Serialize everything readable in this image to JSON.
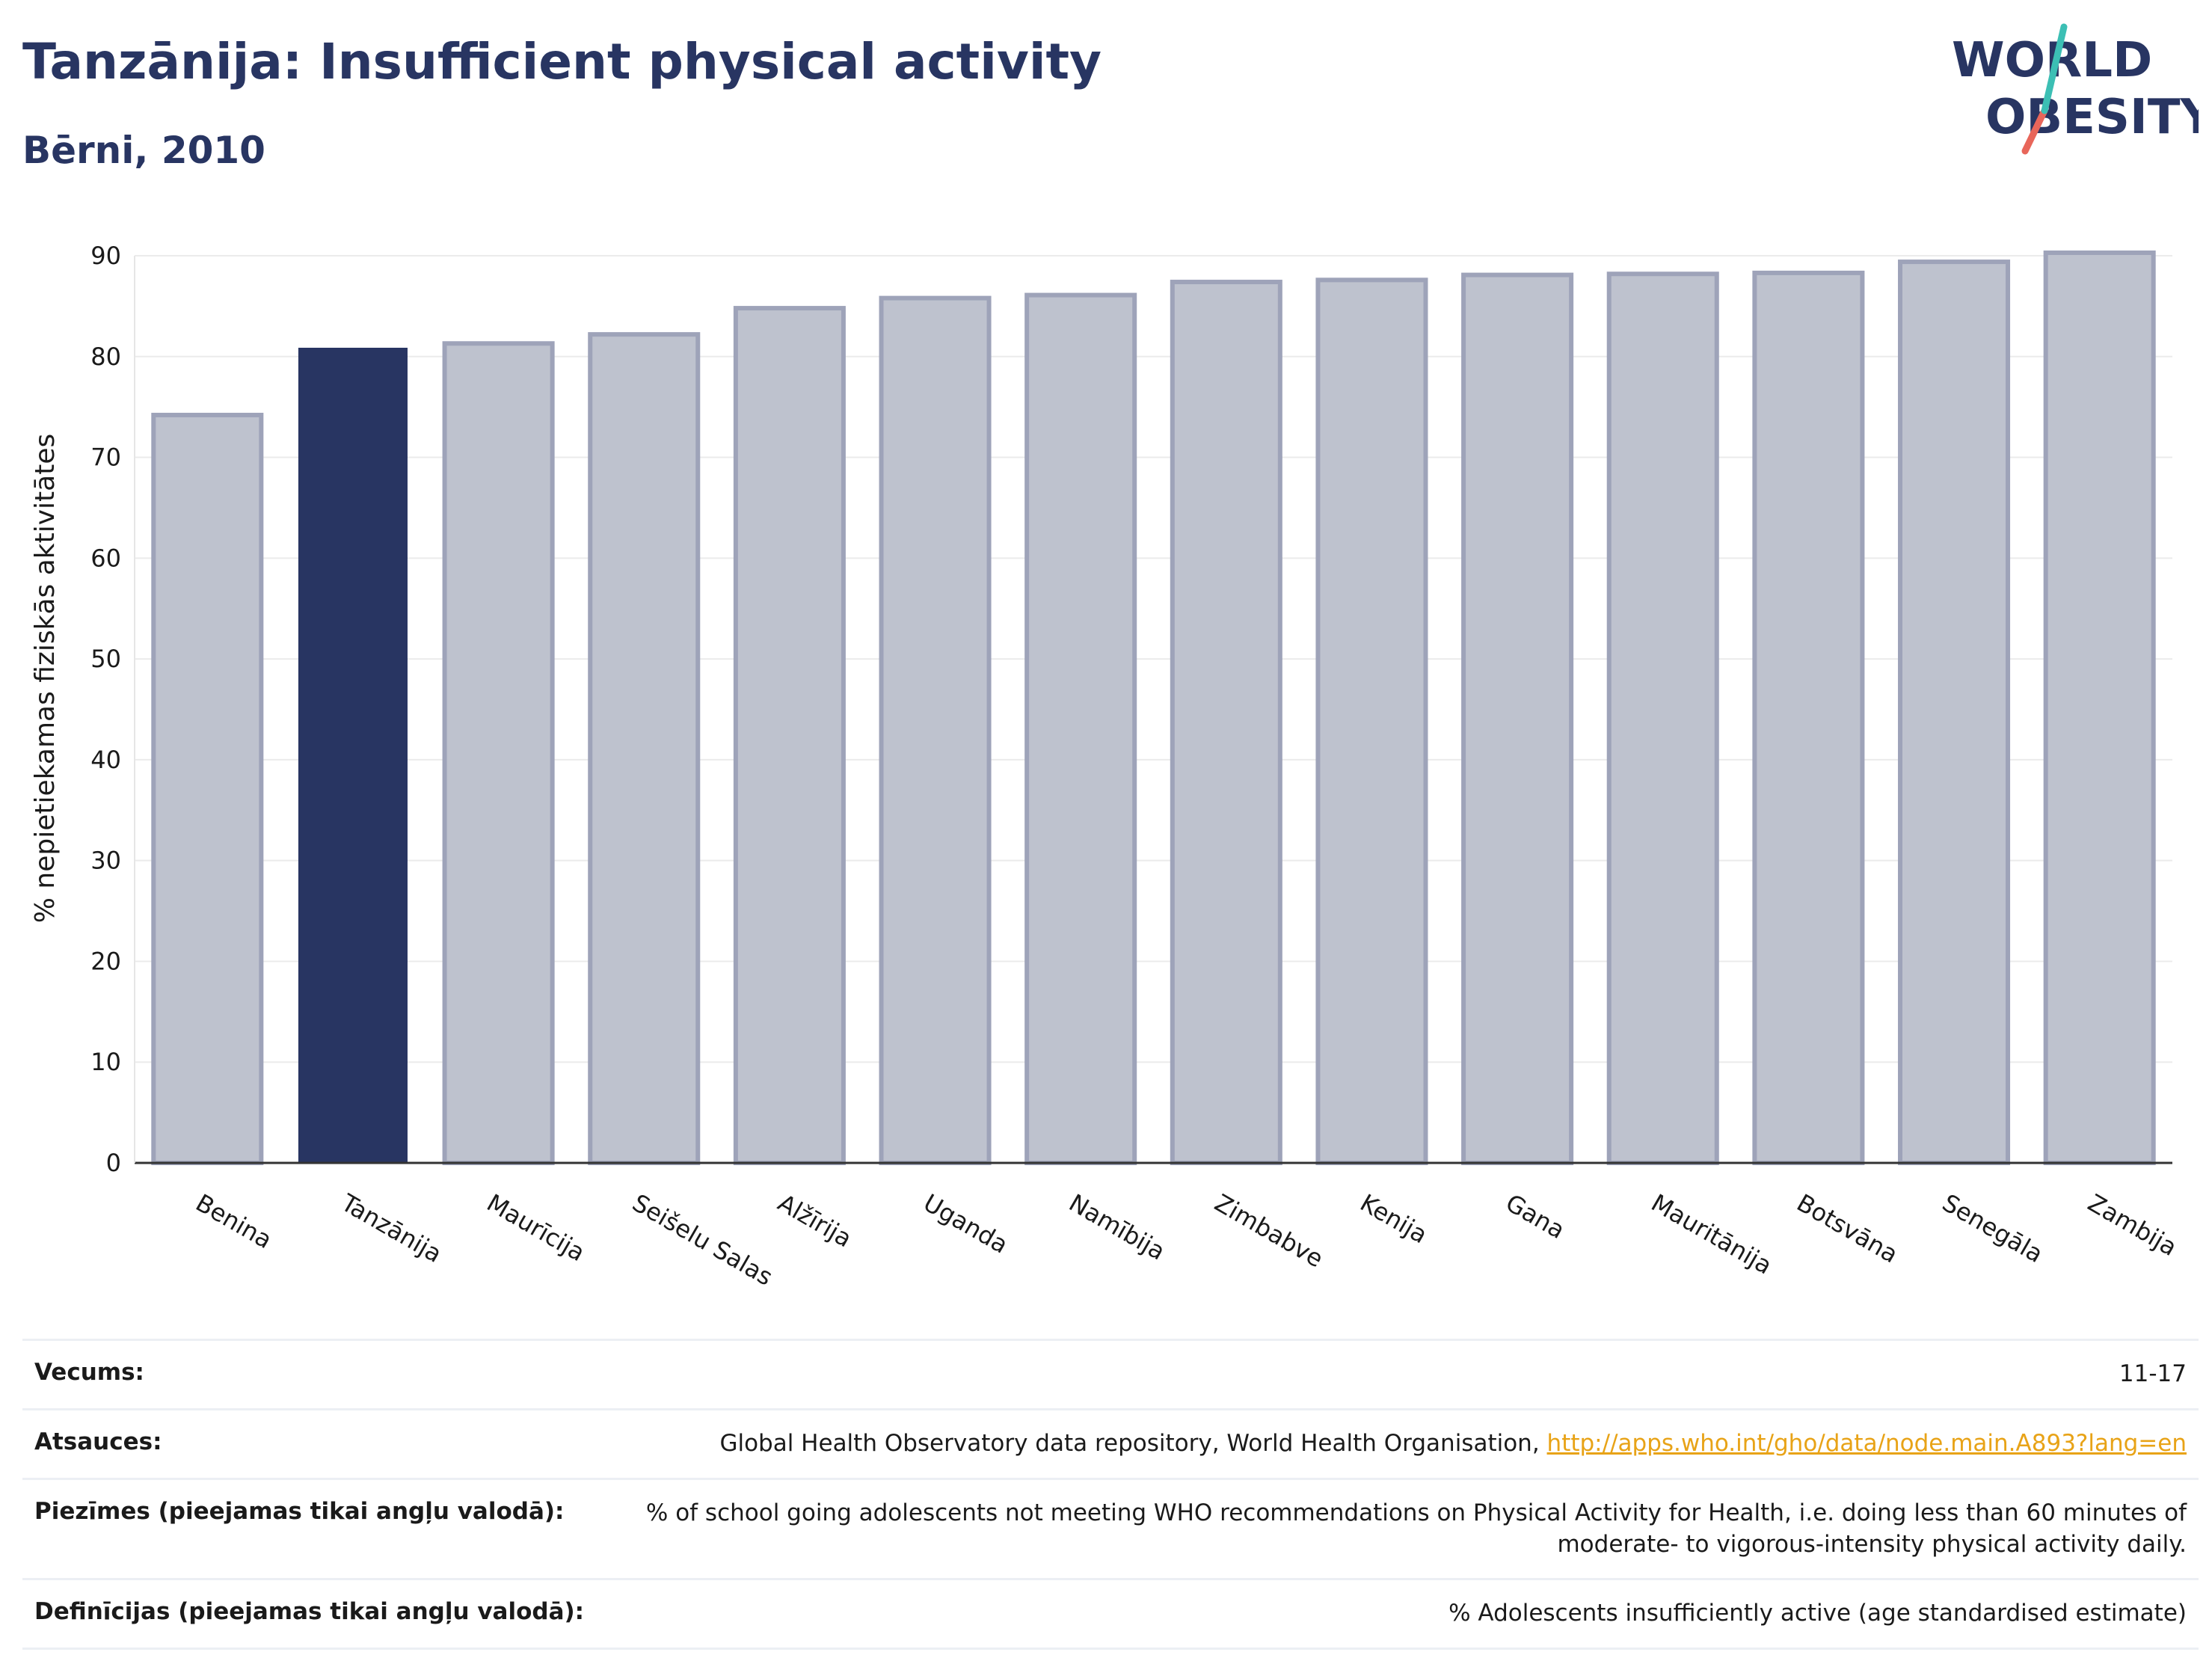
{
  "header": {
    "title": "Tanzānija: Insufficient physical activity",
    "subtitle": "Bērni, 2010"
  },
  "logo": {
    "line1": "WORLD",
    "line2": "OBESITY"
  },
  "colors": {
    "brand": "#283562",
    "bar_default": "#bec2ce",
    "bar_default_border": "#9ea3b9",
    "bar_highlight": "#283562",
    "accent_teal": "#3cbfb4",
    "accent_coral": "#e8665a",
    "link": "#e8a317"
  },
  "chart_data": {
    "type": "bar",
    "ylabel": "% nepietiekamas fiziskās aktivitātes",
    "xlabel": "",
    "ylim": [
      0,
      90
    ],
    "yticks": [
      0,
      10,
      20,
      30,
      40,
      50,
      60,
      70,
      80,
      90
    ],
    "grid": true,
    "categories": [
      "Benina",
      "Tanzānija",
      "Maurīcija",
      "Seišelu Salas",
      "Alžīrija",
      "Uganda",
      "Namībija",
      "Zimbabve",
      "Kenija",
      "Gana",
      "Mauritānija",
      "Botsvāna",
      "Senegāla",
      "Zambija"
    ],
    "values": [
      74.2,
      80.8,
      81.3,
      82.2,
      84.8,
      85.8,
      86.1,
      87.4,
      87.6,
      88.1,
      88.2,
      88.3,
      89.4,
      90.3
    ],
    "highlight": "Tanzānija"
  },
  "meta": {
    "age_label": "Vecums:",
    "age_value": "11-17",
    "sources_label": "Atsauces:",
    "sources_text": "Global Health Observatory data repository, World Health Organisation, ",
    "sources_link": "http://apps.who.int/gho/data/node.main.A893?lang=en",
    "notes_label": "Piezīmes (pieejamas tikai angļu valodā):",
    "notes_value": "% of school going adolescents not meeting WHO recommendations on Physical Activity for Health, i.e. doing less than 60 minutes of moderate- to vigorous-intensity physical activity daily.",
    "definitions_label": "Definīcijas (pieejamas tikai angļu valodā):",
    "definitions_value": "% Adolescents insufficiently active (age standardised estimate)"
  }
}
